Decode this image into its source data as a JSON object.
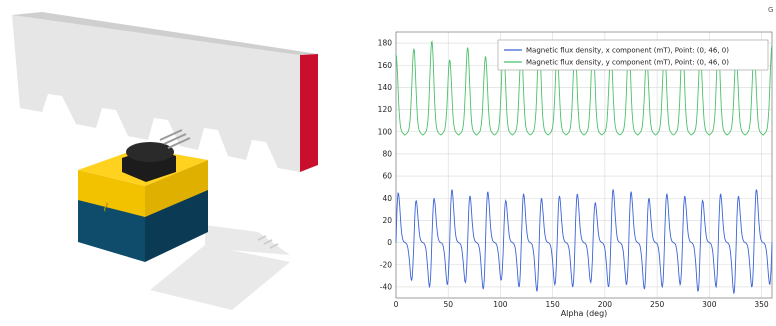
{
  "colors": {
    "magnet_top_face": "#d9d9d9",
    "magnet_side": "#c8102e",
    "yoke_face": "#e6e6e6",
    "sensor_yellow": "#f2c200",
    "sensor_blue": "#0f4c6b",
    "chip": "#1c1c1c",
    "shadow": "#e9e9e9",
    "series_x": "#3a64d8",
    "series_y": "#4cc06a",
    "grid": "#d9d9d9"
  },
  "toolbar": {
    "corner_glyph": "G"
  },
  "chart_data": {
    "type": "line",
    "xlabel": "Alpha (deg)",
    "ylabel": "",
    "xlim": [
      0,
      360
    ],
    "ylim": [
      -50,
      190
    ],
    "x_ticks": [
      0,
      50,
      100,
      150,
      200,
      250,
      300,
      350
    ],
    "y_ticks": [
      -40,
      -20,
      0,
      20,
      40,
      60,
      80,
      100,
      120,
      140,
      160,
      180
    ],
    "grid": true,
    "legend_position": "top-right",
    "series": [
      {
        "name": "Magnetic flux density, x component (mT), Point: (0, 46, 0)",
        "color": "#3a64d8",
        "period_deg": 17.14,
        "peak_positions_deg": [
          0,
          17.1,
          34.3,
          51.4,
          68.6,
          85.7,
          102.9,
          120,
          137.1,
          154.3,
          171.4,
          188.6,
          205.7,
          222.9,
          240,
          257.1,
          274.3,
          291.4,
          308.6,
          325.7,
          342.9,
          360
        ],
        "peak_values_mT": [
          45,
          38,
          40,
          48,
          42,
          46,
          38,
          44,
          40,
          42,
          44,
          36,
          48,
          46,
          40,
          44,
          42,
          38,
          44,
          42,
          48,
          40
        ],
        "trough_values_mT": [
          -38,
          -34,
          -40,
          -38,
          -36,
          -42,
          -34,
          -40,
          -44,
          -38,
          -40,
          -36,
          -40,
          -38,
          -42,
          -40,
          -38,
          -44,
          -40,
          -46,
          -40,
          -38
        ],
        "baseline_mT": 0
      },
      {
        "name": "Magnetic flux density, y component (mT), Point: (0, 46, 0)",
        "color": "#4cc06a",
        "period_deg": 17.14,
        "peak_positions_deg": [
          0,
          17.1,
          34.3,
          51.4,
          68.6,
          85.7,
          102.9,
          120,
          137.1,
          154.3,
          171.4,
          188.6,
          205.7,
          222.9,
          240,
          257.1,
          274.3,
          291.4,
          308.6,
          325.7,
          342.9,
          360
        ],
        "peak_values_mT": [
          170,
          175,
          182,
          165,
          176,
          168,
          180,
          174,
          178,
          170,
          176,
          180,
          172,
          178,
          168,
          176,
          180,
          170,
          176,
          168,
          174,
          178
        ],
        "baseline_mT": 97
      }
    ]
  }
}
